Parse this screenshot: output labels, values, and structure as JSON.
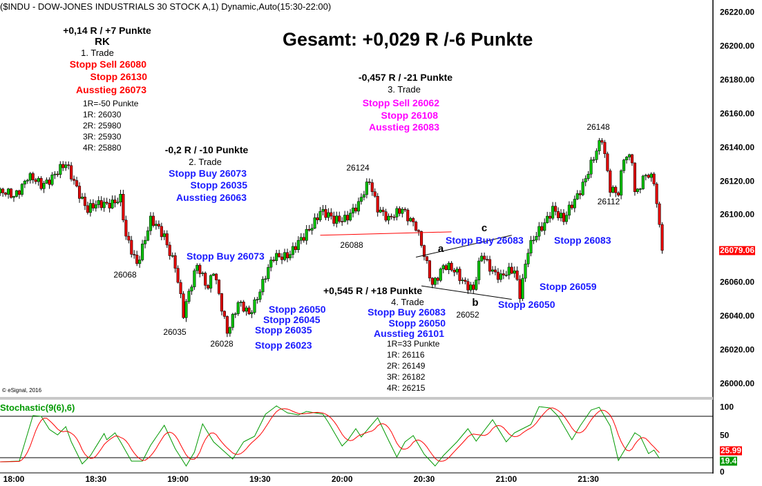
{
  "chart_data": {
    "type": "candlestick",
    "title": "($INDU - DOW-JONES INDUSTRIALS 30 STOCK A,1) Dynamic,Auto(15:30-22:00)",
    "headline": "Gesamt: +0,029 R /-6 Punkte",
    "copyright": "© eSignal, 2016",
    "ylim": [
      26000,
      26220
    ],
    "y_ticks": [
      "26220.00",
      "26200.00",
      "26180.00",
      "26160.00",
      "26140.00",
      "26120.00",
      "26100.00",
      "26060.00",
      "26040.00",
      "26020.00",
      "26000.00"
    ],
    "y_tick_values": [
      26220,
      26200,
      26180,
      26160,
      26140,
      26120,
      26100,
      26060,
      26040,
      26020,
      26000
    ],
    "last_price": "26079.06",
    "x_ticks": [
      "18:00",
      "18:30",
      "19:00",
      "19:30",
      "20:00",
      "20:30",
      "21:00",
      "21:30"
    ],
    "x_tick_minutes": [
      0,
      30,
      60,
      90,
      120,
      150,
      180,
      210
    ],
    "x_unit": "minutes after 18:00, 1-minute bars",
    "price_path": [
      [
        -5,
        26113
      ],
      [
        0,
        26111
      ],
      [
        5,
        26123
      ],
      [
        10,
        26117
      ],
      [
        15,
        26125
      ],
      [
        19,
        26129
      ],
      [
        23,
        26117
      ],
      [
        27,
        26103
      ],
      [
        33,
        26107
      ],
      [
        39,
        26109
      ],
      [
        41,
        26086
      ],
      [
        45,
        26072
      ],
      [
        50,
        26096
      ],
      [
        55,
        26088
      ],
      [
        59,
        26070
      ],
      [
        62,
        26040
      ],
      [
        65,
        26060
      ],
      [
        67,
        26072
      ],
      [
        71,
        26056
      ],
      [
        73,
        26066
      ],
      [
        78,
        26032
      ],
      [
        82,
        26047
      ],
      [
        86,
        26041
      ],
      [
        92,
        26064
      ],
      [
        95,
        26074
      ],
      [
        101,
        26078
      ],
      [
        106,
        26086
      ],
      [
        112,
        26103
      ],
      [
        117,
        26096
      ],
      [
        121,
        26099
      ],
      [
        126,
        26105
      ],
      [
        130,
        26121
      ],
      [
        133,
        26105
      ],
      [
        137,
        26096
      ],
      [
        142,
        26105
      ],
      [
        147,
        26092
      ],
      [
        150,
        26076
      ],
      [
        153,
        26060
      ],
      [
        157,
        26069
      ],
      [
        162,
        26066
      ],
      [
        168,
        26055
      ],
      [
        171,
        26076
      ],
      [
        175,
        26068
      ],
      [
        178,
        26063
      ],
      [
        183,
        26067
      ],
      [
        185,
        26054
      ],
      [
        188,
        26080
      ],
      [
        193,
        26092
      ],
      [
        197,
        26105
      ],
      [
        201,
        26096
      ],
      [
        205,
        26109
      ],
      [
        208,
        26119
      ],
      [
        212,
        26133
      ],
      [
        215,
        26145
      ],
      [
        218,
        26117
      ],
      [
        221,
        26113
      ],
      [
        223,
        26133
      ],
      [
        226,
        26133
      ],
      [
        227,
        26113
      ],
      [
        231,
        26125
      ],
      [
        234,
        26119
      ],
      [
        235,
        26105
      ],
      [
        237,
        26079
      ]
    ],
    "swing_labels": [
      {
        "text": "26124",
        "price": 26124,
        "minute": 126
      },
      {
        "text": "26088",
        "price": 26088,
        "minute": 123
      },
      {
        "text": "26068",
        "price": 26068,
        "minute": 41
      },
      {
        "text": "26035",
        "price": 26035,
        "minute": 59
      },
      {
        "text": "26028",
        "price": 26028,
        "minute": 76
      },
      {
        "text": "26148",
        "price": 26148,
        "minute": 214
      },
      {
        "text": "26112",
        "price": 26112,
        "minute": 218
      },
      {
        "text": "26052",
        "price": 26052,
        "minute": 166
      }
    ],
    "wave_labels": [
      {
        "text": "a",
        "minute": 156,
        "price": 26082
      },
      {
        "text": "b",
        "minute": 168,
        "price": 26050
      },
      {
        "text": "c",
        "minute": 171,
        "price": 26096
      }
    ],
    "resistance_line": {
      "from": [
        112,
        26088
      ],
      "to": [
        160,
        26090
      ],
      "color": "#ff0000"
    },
    "channel_top": {
      "from": [
        147,
        26075
      ],
      "to": [
        182,
        26088
      ]
    },
    "channel_bottom": {
      "from": [
        149,
        26058
      ],
      "to": [
        182,
        26050
      ]
    },
    "stochastic": {
      "label": "Stochastic(9(6),6)",
      "ylim": [
        0,
        100
      ],
      "y_ticks": [
        "100",
        "50",
        "0"
      ],
      "levels": [
        80,
        20
      ],
      "k_color": "#009900",
      "d_color": "#ff0000",
      "k_value": "19.4",
      "d_value": "25.99",
      "k_path": [
        [
          -5,
          14
        ],
        [
          2,
          15
        ],
        [
          7,
          81
        ],
        [
          10,
          80
        ],
        [
          13,
          61
        ],
        [
          16,
          53
        ],
        [
          19,
          65
        ],
        [
          21,
          43
        ],
        [
          25,
          11
        ],
        [
          28,
          23
        ],
        [
          33,
          55
        ],
        [
          34,
          46
        ],
        [
          37,
          56
        ],
        [
          39,
          43
        ],
        [
          43,
          15
        ],
        [
          47,
          15
        ],
        [
          50,
          38
        ],
        [
          55,
          67
        ],
        [
          59,
          33
        ],
        [
          63,
          8
        ],
        [
          66,
          28
        ],
        [
          69,
          69
        ],
        [
          73,
          43
        ],
        [
          80,
          18
        ],
        [
          84,
          43
        ],
        [
          88,
          51
        ],
        [
          92,
          83
        ],
        [
          96,
          95
        ],
        [
          100,
          85
        ],
        [
          104,
          82
        ],
        [
          107,
          87
        ],
        [
          113,
          83
        ],
        [
          115,
          71
        ],
        [
          120,
          37
        ],
        [
          122,
          45
        ],
        [
          125,
          62
        ],
        [
          127,
          50
        ],
        [
          133,
          78
        ],
        [
          137,
          45
        ],
        [
          140,
          21
        ],
        [
          143,
          43
        ],
        [
          146,
          52
        ],
        [
          150,
          25
        ],
        [
          154,
          8
        ],
        [
          157,
          23
        ],
        [
          162,
          43
        ],
        [
          166,
          62
        ],
        [
          169,
          44
        ],
        [
          175,
          75
        ],
        [
          180,
          43
        ],
        [
          183,
          56
        ],
        [
          189,
          68
        ],
        [
          192,
          94
        ],
        [
          196,
          92
        ],
        [
          199,
          80
        ],
        [
          204,
          46
        ],
        [
          207,
          66
        ],
        [
          211,
          89
        ],
        [
          214,
          93
        ],
        [
          218,
          66
        ],
        [
          221,
          16
        ],
        [
          227,
          56
        ],
        [
          229,
          51
        ],
        [
          232,
          26
        ],
        [
          234,
          31
        ],
        [
          236,
          19
        ]
      ]
    },
    "colors": {
      "up": "#00c000",
      "down": "#e00000",
      "last_price_bg": "#ff0000"
    }
  },
  "annotations": {
    "trade1": {
      "result": "+0,14 R / +7 Punkte",
      "rk": "RK",
      "name": "1. Trade",
      "entry": "Stopp Sell 26080",
      "stop": "Stopp 26130",
      "exit": "Ausstieg 26073",
      "r_def": "1R=-50 Punkte",
      "targets": [
        "1R: 26030",
        "2R: 25980",
        "3R: 25930",
        "4R: 25880"
      ]
    },
    "trade2": {
      "result": "-0,2 R / -10 Punkte",
      "name": "2. Trade",
      "entry": "Stopp Buy 26073",
      "stop": "Stopp 26035",
      "exit": "Ausstieg 26063",
      "entry2": "Stopp Buy 26073",
      "stops": [
        "Stopp 26050",
        "Stopp 26045",
        "Stopp 26035",
        "Stopp 26023"
      ]
    },
    "trade3": {
      "result": "-0,457 R / -21 Punkte",
      "name": "3. Trade",
      "entry": "Stopp Sell 26062",
      "stop": "Stopp 26108",
      "exit": "Ausstieg 26083"
    },
    "trade4": {
      "result": "+0,545 R / +18 Punkte",
      "name": "4. Trade",
      "entry": "Stopp Buy 26083",
      "stop": "Stopp 26050",
      "exit": "Ausstieg 26101",
      "r_def": "1R=33 Punkte",
      "targets": [
        "1R: 26116",
        "2R: 26149",
        "3R: 26182",
        "4R: 26215"
      ],
      "entry_chart": "Stopp Buy 26083",
      "stop_a": "Stopp 26083",
      "stop_b": "Stopp 26059",
      "stop_c": "Stopp 26050"
    }
  }
}
